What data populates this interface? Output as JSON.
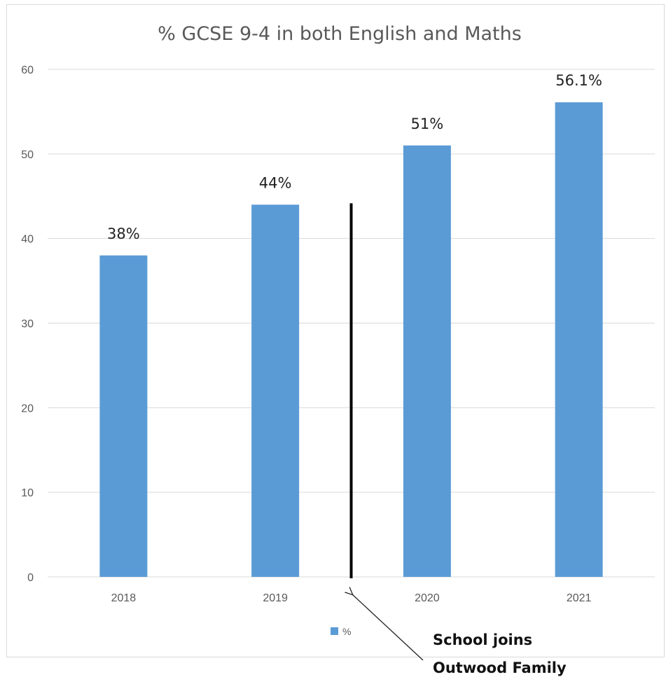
{
  "chart_data": {
    "type": "bar",
    "title": "% GCSE 9-4 in both English and Maths",
    "xlabel": "",
    "ylabel": "",
    "categories": [
      "2018",
      "2019",
      "2020",
      "2021"
    ],
    "series": [
      {
        "name": "%",
        "values": [
          38,
          44,
          51,
          56.1
        ],
        "data_labels": [
          "38%",
          "44%",
          "51%",
          "56.1%"
        ],
        "color": "#5b9bd5"
      }
    ],
    "ylim": [
      0,
      60
    ],
    "yticks": [
      0,
      10,
      20,
      30,
      40,
      50,
      60
    ],
    "grid": true,
    "legend": "bottom",
    "annotation": {
      "lines": [
        "School joins",
        "Outwood Family"
      ],
      "marker_value": 44,
      "between": [
        "2019",
        "2020"
      ]
    }
  }
}
